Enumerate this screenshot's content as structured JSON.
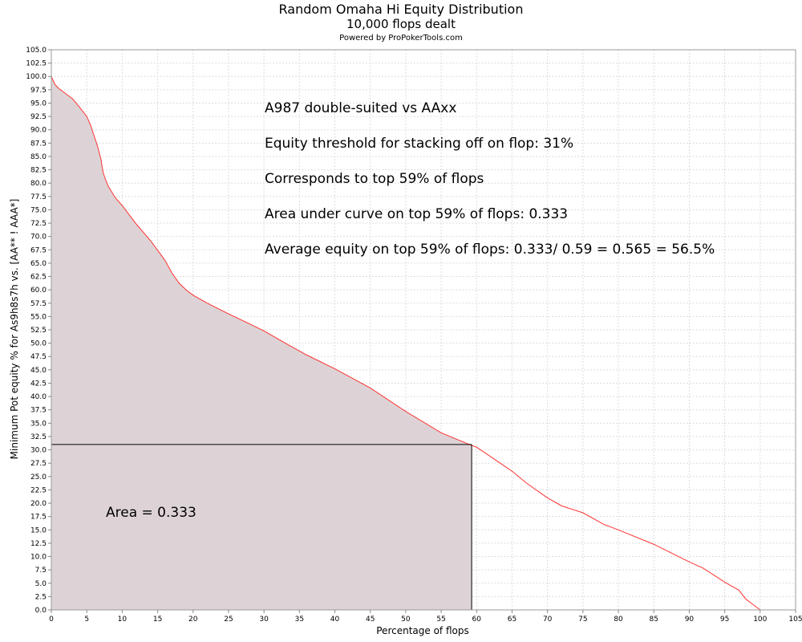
{
  "chart_data": {
    "type": "area",
    "title": "Random Omaha Hi Equity Distribution",
    "subtitle": "10,000 flops dealt",
    "credit": "Powered by ProPokerTools.com",
    "xlabel": "Percentage of flops",
    "ylabel": "Minimum Pot equity % for As9h8s7h vs. [AA** ! AAA*]",
    "xlim": [
      0,
      105
    ],
    "ylim": [
      0,
      105
    ],
    "x_ticks": [
      0,
      5,
      10,
      15,
      20,
      25,
      30,
      35,
      40,
      45,
      50,
      55,
      60,
      65,
      70,
      75,
      80,
      85,
      90,
      95,
      100,
      105
    ],
    "y_ticks": [
      0,
      2.5,
      5,
      7.5,
      10,
      12.5,
      15,
      17.5,
      20,
      22.5,
      25,
      27.5,
      30,
      32.5,
      35,
      37.5,
      40,
      42.5,
      45,
      47.5,
      50,
      52.5,
      55,
      57.5,
      60,
      62.5,
      65,
      67.5,
      70,
      72.5,
      75,
      77.5,
      80,
      82.5,
      85,
      87.5,
      90,
      92.5,
      95,
      97.5,
      100,
      102.5,
      105
    ],
    "grid": true,
    "line_color": "#ff3333",
    "fill_color": "#ddd3d6",
    "series": [
      {
        "x": [
          0,
          0.5,
          1,
          2,
          3,
          4,
          5,
          5.5,
          6,
          6.5,
          7,
          7.3,
          7.7,
          8,
          9,
          10,
          12,
          14,
          16,
          17,
          18,
          19,
          20,
          22,
          25,
          28,
          30,
          33,
          36,
          40,
          45,
          50,
          55,
          59,
          60,
          62,
          65,
          67,
          70,
          72,
          75,
          78,
          80,
          85,
          90,
          92,
          95,
          97,
          98,
          99,
          100
        ],
        "y": [
          100,
          98.5,
          97.8,
          96.8,
          95.8,
          94.2,
          92.5,
          91,
          89,
          87,
          84.5,
          82,
          80.5,
          79.5,
          77.3,
          75.8,
          72.3,
          69.2,
          65.6,
          63.2,
          61.3,
          60,
          59,
          57.5,
          55.5,
          53.6,
          52.3,
          50,
          47.8,
          45.2,
          41.6,
          37.2,
          33.2,
          31,
          30.5,
          28.7,
          26,
          23.8,
          21,
          19.5,
          18.2,
          16,
          15,
          12.3,
          9,
          7.8,
          5.2,
          3.7,
          2,
          1,
          0
        ]
      }
    ],
    "threshold": {
      "x": 59.3,
      "y": 31
    },
    "annotations": [
      "A987 double-suited vs AAxx",
      "Equity threshold for stacking off on flop: 31%",
      "Corresponds to top 59% of flops",
      "Area under curve on top 59% of flops: 0.333",
      "Average equity on top 59% of flops: 0.333/ 0.59 = 0.565 = 56.5%"
    ],
    "area_label": "Area = 0.333"
  }
}
